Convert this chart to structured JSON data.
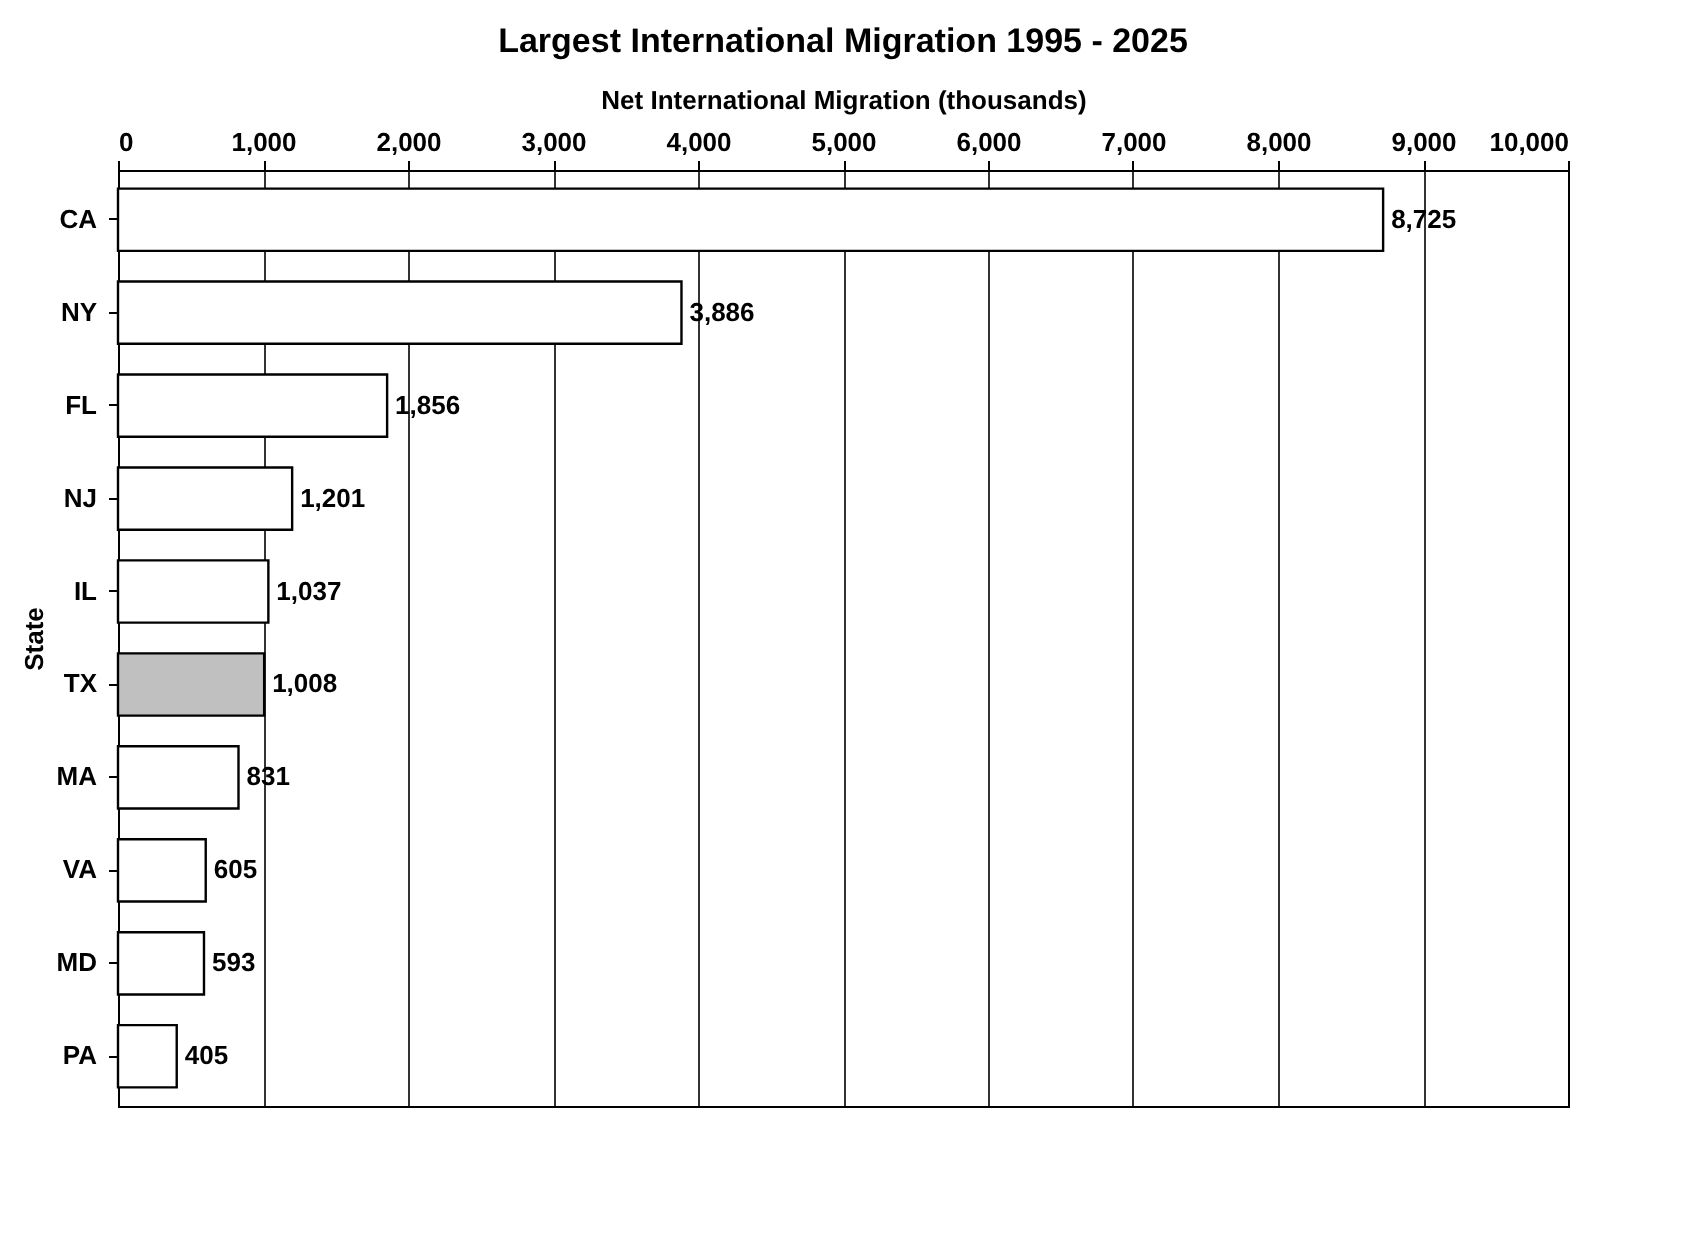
{
  "chart_data": {
    "type": "bar",
    "orientation": "horizontal",
    "title": "Largest International Migration 1995 - 2025",
    "xlabel": "Net International Migration (thousands)",
    "ylabel": "State",
    "categories": [
      "CA",
      "NY",
      "FL",
      "NJ",
      "IL",
      "TX",
      "MA",
      "VA",
      "MD",
      "PA"
    ],
    "values": [
      8725,
      3886,
      1856,
      1201,
      1037,
      1008,
      831,
      605,
      593,
      405
    ],
    "value_labels": [
      "8,725",
      "3,886",
      "1,856",
      "1,201",
      "1,037",
      "1,008",
      "831",
      "605",
      "593",
      "405"
    ],
    "colors": [
      "#ffffff",
      "#ffffff",
      "#ffffff",
      "#ffffff",
      "#ffffff",
      "#c0c0c0",
      "#ffffff",
      "#ffffff",
      "#ffffff",
      "#ffffff"
    ],
    "xlim": [
      0,
      10000
    ],
    "xticks": [
      0,
      {
        "value": 1000,
        "label": "1,000"
      },
      {
        "value": 2000,
        "label": "2,000"
      },
      {
        "value": 3000,
        "label": "3,000"
      },
      {
        "value": 4000,
        "label": "4,000"
      },
      {
        "value": 5000,
        "label": "5,000"
      },
      {
        "value": 6000,
        "label": "6,000"
      },
      {
        "value": 7000,
        "label": "7,000"
      },
      {
        "value": 8000,
        "label": "8,000"
      },
      {
        "value": 9000,
        "label": "9,000"
      },
      {
        "value": 10000,
        "label": "10,000"
      }
    ],
    "grid": "x"
  }
}
